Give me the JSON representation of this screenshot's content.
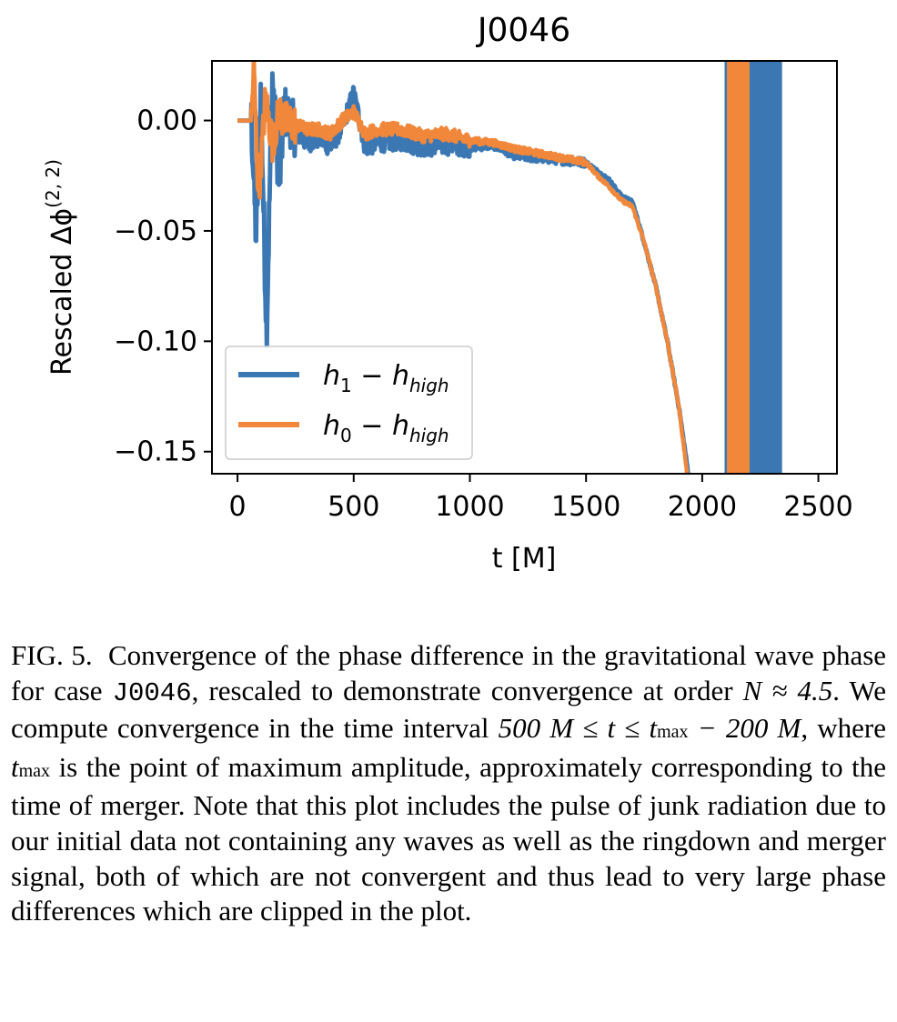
{
  "chart_data": {
    "type": "line",
    "title": "J0046",
    "xlabel": "t [M]",
    "ylabel": "Rescaled Δϕ",
    "ylabel_superscript": "(2, 2)",
    "xlim": [
      -110,
      2580
    ],
    "ylim": [
      -0.16,
      0.027
    ],
    "xticks": [
      0,
      500,
      1000,
      1500,
      2000,
      2500
    ],
    "xtick_labels": [
      "0",
      "500",
      "1000",
      "1500",
      "2000",
      "2500"
    ],
    "yticks": [
      0.0,
      -0.05,
      -0.1,
      -0.15
    ],
    "ytick_labels": [
      "0.00",
      "−0.05",
      "−0.10",
      "−0.15"
    ],
    "grid": false,
    "legend_position": "lower-left",
    "colors": {
      "h1": "#3b78b3",
      "h0": "#f0873a"
    },
    "series": [
      {
        "name": "h1 − hhigh",
        "legend_base": "h",
        "legend_sub1": "1",
        "legend_mid": " − h",
        "legend_sub2": "high",
        "color": "#3b78b3",
        "x": [
          0,
          60,
          80,
          100,
          125,
          150,
          180,
          200,
          250,
          300,
          350,
          400,
          450,
          500,
          550,
          600,
          700,
          800,
          900,
          1000,
          1100,
          1200,
          1300,
          1400,
          1500,
          1550,
          1600,
          1650,
          1700,
          1750,
          1800,
          1850,
          1900,
          1940
        ],
        "y": [
          0.0,
          0.0,
          -0.053,
          0.012,
          -0.095,
          0.02,
          -0.03,
          0.005,
          -0.005,
          -0.01,
          -0.008,
          -0.012,
          -0.003,
          0.012,
          -0.012,
          -0.01,
          -0.009,
          -0.012,
          -0.011,
          -0.012,
          -0.011,
          -0.016,
          -0.017,
          -0.018,
          -0.019,
          -0.023,
          -0.027,
          -0.034,
          -0.037,
          -0.055,
          -0.075,
          -0.1,
          -0.13,
          -0.16
        ],
        "ringdown_x": [
          2110,
          2135,
          2160,
          2185,
          2210,
          2235,
          2260,
          2285,
          2310,
          2330
        ]
      },
      {
        "name": "h0 − hhigh",
        "legend_base": "h",
        "legend_sub1": "0",
        "legend_mid": " − h",
        "legend_sub2": "high",
        "color": "#f0873a",
        "x": [
          0,
          60,
          70,
          90,
          120,
          150,
          180,
          200,
          250,
          300,
          350,
          400,
          450,
          500,
          550,
          600,
          700,
          800,
          900,
          1000,
          1100,
          1200,
          1300,
          1400,
          1500,
          1550,
          1600,
          1650,
          1700,
          1750,
          1800,
          1850,
          1900,
          1935
        ],
        "y": [
          0.0,
          0.0,
          0.025,
          -0.035,
          0.01,
          -0.01,
          0.004,
          0.0,
          -0.002,
          -0.004,
          -0.004,
          -0.006,
          0.0,
          0.004,
          -0.006,
          -0.004,
          -0.004,
          -0.007,
          -0.006,
          -0.009,
          -0.01,
          -0.013,
          -0.015,
          -0.017,
          -0.019,
          -0.025,
          -0.03,
          -0.036,
          -0.039,
          -0.055,
          -0.075,
          -0.1,
          -0.13,
          -0.16
        ],
        "ringdown_x": [
          2120,
          2145,
          2170,
          2190
        ]
      }
    ]
  },
  "caption": {
    "label": "FIG. 5.",
    "t1": "Convergence of the phase difference in the gravitational wave phase for case ",
    "code": "J0046",
    "t2": ", rescaled to demonstrate convergence at order ",
    "math1": "N ≈ 4.5",
    "t3": ". We compute convergence in the time interval ",
    "math2": "500 M ≤ t ≤ t",
    "math2_sub": "max",
    "math3": " − 200 M",
    "t4": ", where ",
    "math4": "t",
    "math4_sub": "max",
    "t5": " is the point of maximum amplitude, approximately corresponding to the time of merger. Note that this plot includes the pulse of junk radiation due to our initial data not containing any waves as well as the ringdown and merger signal, both of which are not convergent and thus lead to very large phase differences which are clipped in the plot."
  }
}
